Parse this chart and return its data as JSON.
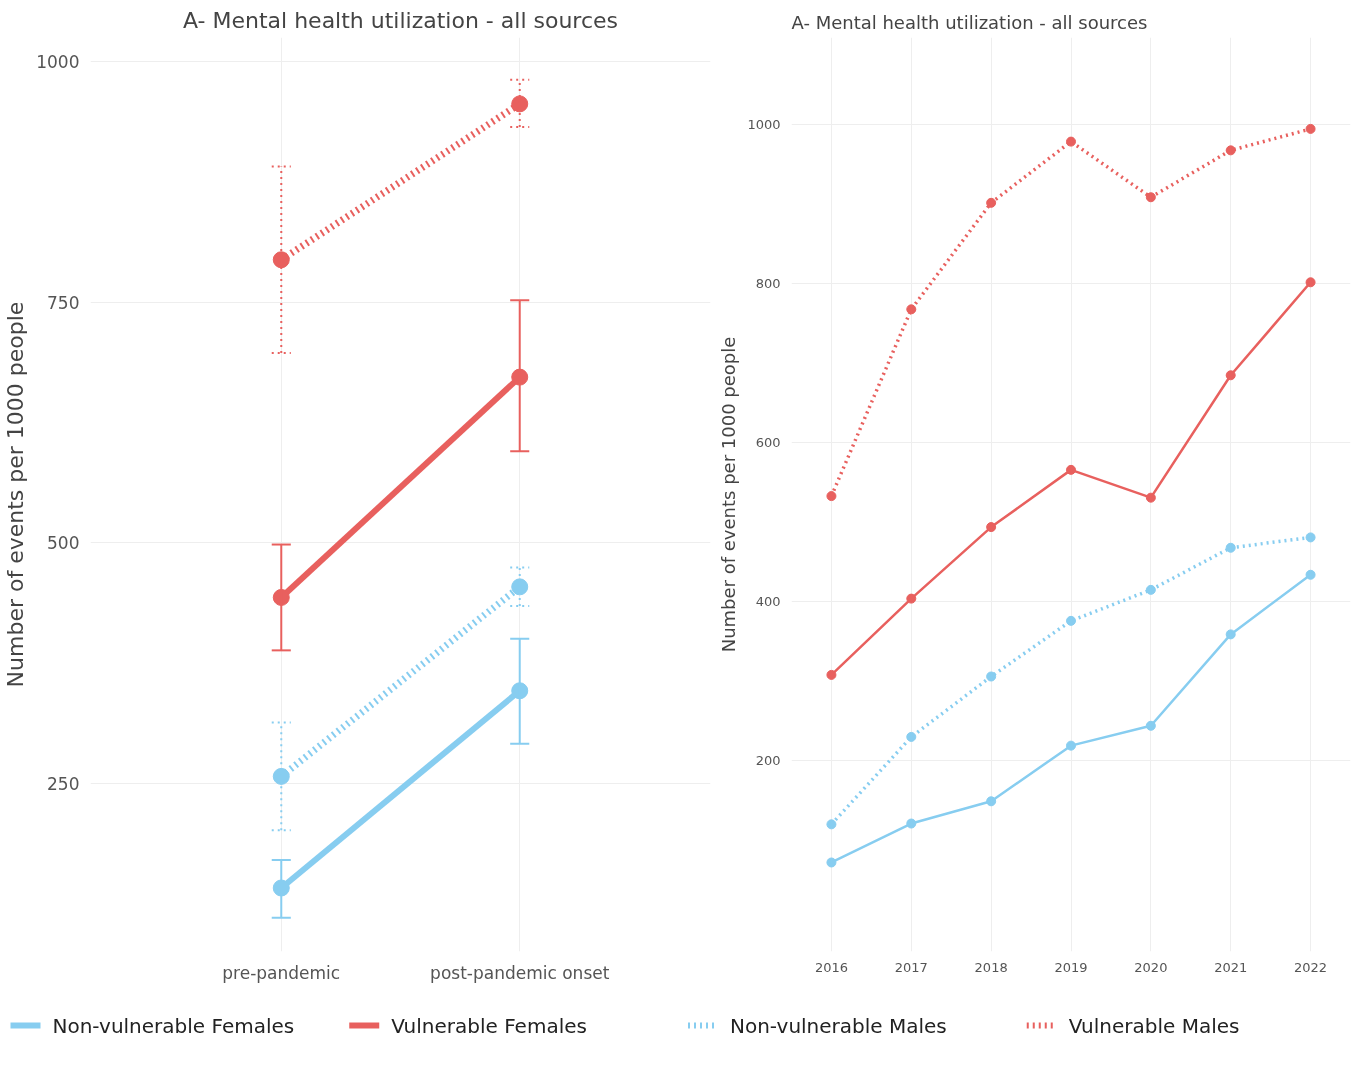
{
  "chart_data": [
    {
      "type": "line",
      "title": "A- Mental health utilization - all sources",
      "ylabel": "Number of events per 1000 people",
      "categories": [
        "pre-pandemic",
        "post-pandemic onset"
      ],
      "ylim": [
        75,
        1025
      ],
      "yticks": [
        250,
        500,
        750,
        1000
      ],
      "grid": true,
      "marker": "circle",
      "legend": "bottom",
      "series": [
        {
          "name": "Non-vulnerable Females",
          "color": "#87cdf0",
          "line_style": "solid",
          "values": [
            141,
            346
          ],
          "errors": [
            [
              110,
              170
            ],
            [
              291,
              400
            ]
          ]
        },
        {
          "name": "Vulnerable Females",
          "color": "#e8605e",
          "line_style": "solid",
          "values": [
            443,
            672
          ],
          "errors": [
            [
              388,
              498
            ],
            [
              595,
              752
            ]
          ]
        },
        {
          "name": "Non-vulnerable Males",
          "color": "#87cdf0",
          "line_style": "dotted",
          "values": [
            257,
            454
          ],
          "errors": [
            [
              201,
              313
            ],
            [
              434,
              474
            ]
          ]
        },
        {
          "name": "Vulnerable Males",
          "color": "#e8605e",
          "line_style": "dotted",
          "values": [
            794,
            956
          ],
          "errors": [
            [
              697,
              891
            ],
            [
              932,
              981
            ]
          ]
        }
      ]
    },
    {
      "type": "line",
      "title": "A- Mental health utilization - all sources",
      "ylabel": "Number of events per 1000 people",
      "categories": [
        "2016",
        "2017",
        "2018",
        "2019",
        "2020",
        "2021",
        "2022"
      ],
      "ylim": [
        -40,
        1110
      ],
      "yticks": [
        200,
        400,
        600,
        800,
        1000
      ],
      "grid": true,
      "marker": "circle",
      "series": [
        {
          "color": "#87cdf0",
          "line_style": "solid",
          "values": [
            72,
            121,
            149,
            219,
            244,
            359,
            434
          ]
        },
        {
          "color": "#e8605e",
          "line_style": "solid",
          "values": [
            308,
            404,
            494,
            566,
            531,
            685,
            802
          ]
        },
        {
          "color": "#87cdf0",
          "line_style": "dotted",
          "values": [
            120,
            230,
            306,
            376,
            415,
            468,
            481
          ]
        },
        {
          "color": "#e8605e",
          "line_style": "dotted",
          "values": [
            533,
            768,
            902,
            979,
            909,
            968,
            995
          ]
        }
      ]
    }
  ]
}
